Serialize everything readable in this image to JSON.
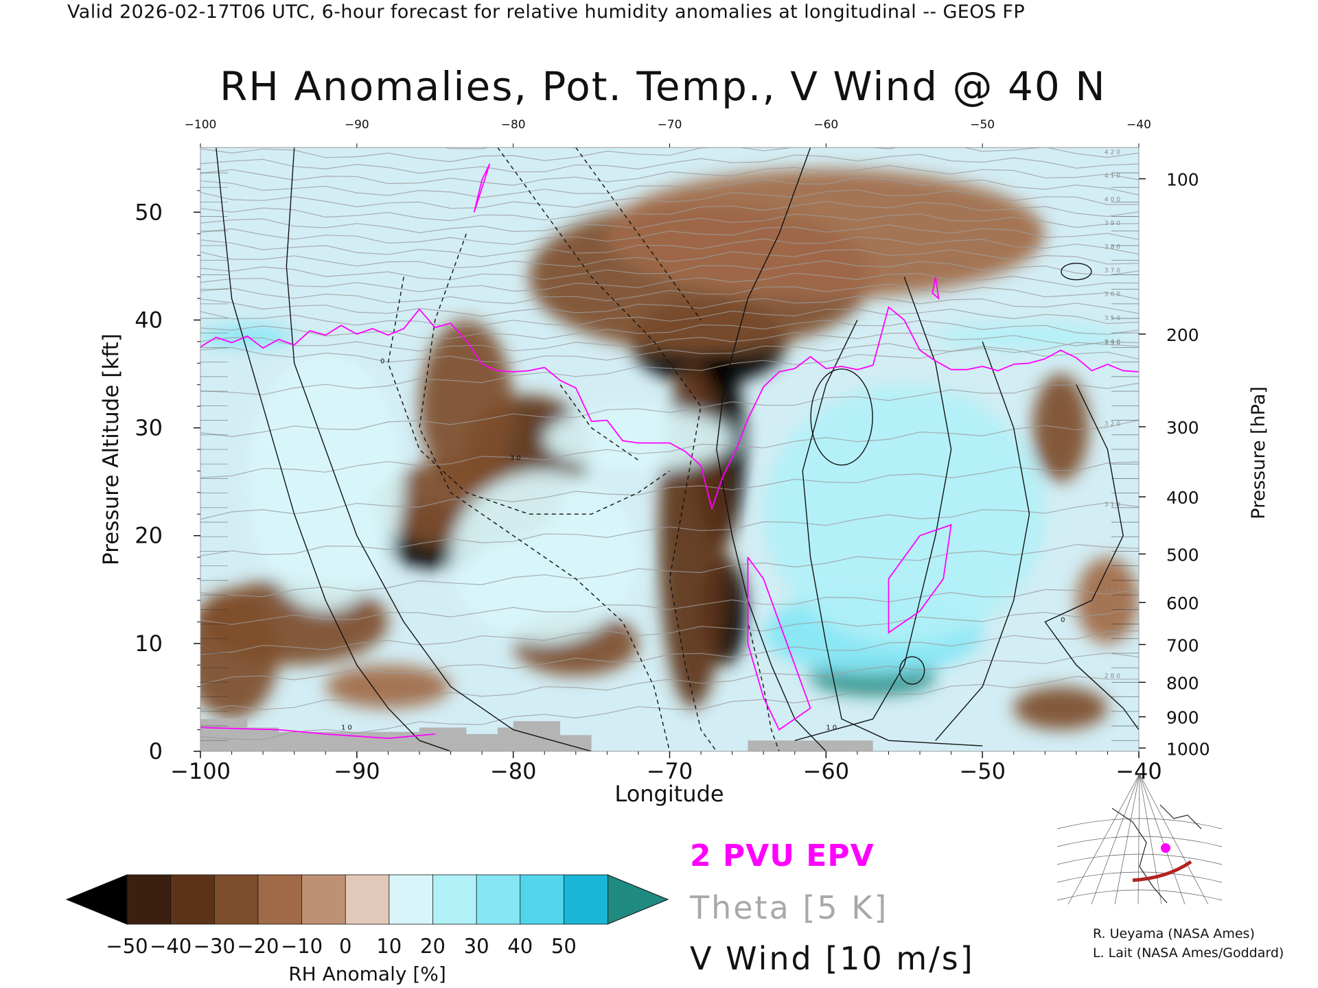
{
  "header": {
    "text": "Valid 2026-02-17T06 UTC, 6-hour forecast for relative humidity anomalies at longitudinal -- GEOS FP"
  },
  "chart_data": {
    "type": "heatmap",
    "title": "RH Anomalies, Pot. Temp., V Wind @ 40 N",
    "xlabel": "Longitude",
    "ylabel_left": "Pressure Altitude [kft]",
    "ylabel_right": "Pressure [hPa]",
    "xlim": [
      -100,
      -40
    ],
    "ylim": [
      0,
      56
    ],
    "x_ticks_bottom": [
      -100,
      -90,
      -80,
      -70,
      -60,
      -50,
      -40
    ],
    "x_ticks_top": [
      -100,
      -90,
      -80,
      -70,
      -60,
      -50,
      -40
    ],
    "y_ticks_left": [
      0,
      10,
      20,
      30,
      40,
      50
    ],
    "pressure_ticks": [
      {
        "hpa": 100,
        "kft": 53.1
      },
      {
        "hpa": 200,
        "kft": 38.7
      },
      {
        "hpa": 300,
        "kft": 30.1
      },
      {
        "hpa": 400,
        "kft": 23.6
      },
      {
        "hpa": 500,
        "kft": 18.3
      },
      {
        "hpa": 600,
        "kft": 13.8
      },
      {
        "hpa": 700,
        "kft": 9.9
      },
      {
        "hpa": 800,
        "kft": 6.4
      },
      {
        "hpa": 900,
        "kft": 3.2
      },
      {
        "hpa": 1000,
        "kft": 0.3
      }
    ],
    "grid": false,
    "colorbar": {
      "label": "RH Anomaly [%]",
      "ticks": [
        -50,
        -40,
        -30,
        -20,
        -10,
        0,
        10,
        20,
        30,
        40,
        50
      ],
      "colors": [
        "#3b2010",
        "#5c3318",
        "#7e4d2c",
        "#a06a48",
        "#be9074",
        "#e2c8b8",
        "#d8f6fa",
        "#b2f0f8",
        "#86e6f4",
        "#52d6ee",
        "#1ab6d8"
      ],
      "under_color": "#000000",
      "over_color": "#1f8a80",
      "extend": "both"
    },
    "theta_levels": [
      280,
      290,
      300,
      310,
      320,
      330,
      340,
      350,
      360,
      370,
      380,
      390,
      400,
      410,
      420
    ],
    "vwind_contour_labels": [
      "0",
      "10",
      "-10",
      "-30"
    ],
    "legend": [
      {
        "label": "2 PVU EPV",
        "color": "#ff00ff"
      },
      {
        "label": "Theta [5 K]",
        "color": "#a8a8a8"
      },
      {
        "label": "V Wind [10 m/s]",
        "color": "#111111"
      }
    ],
    "anomaly_blobs": [
      {
        "lon": -67.5,
        "kft": 38,
        "rl": 5,
        "rk": 4,
        "v": -65
      },
      {
        "lon": -66.8,
        "kft": 28,
        "rl": 1.6,
        "rk": 9,
        "v": -55
      },
      {
        "lon": -66.5,
        "kft": 13,
        "rl": 1.4,
        "rk": 5,
        "v": -55
      },
      {
        "lon": -68.5,
        "kft": 20,
        "rl": 2.2,
        "rk": 16,
        "v": -35
      },
      {
        "lon": -68,
        "kft": 44,
        "rl": 11,
        "rk": 7,
        "v": -28
      },
      {
        "lon": -79,
        "kft": 28,
        "rl": 4,
        "rk": 5,
        "v": -40
      },
      {
        "lon": -85,
        "kft": 20,
        "rl": 3.5,
        "rk": 3,
        "v": -55
      },
      {
        "lon": -83,
        "kft": 23,
        "rl": 6,
        "rk": 4,
        "v": -30
      },
      {
        "lon": -94,
        "kft": 12,
        "rl": 6,
        "rk": 4,
        "v": -30
      },
      {
        "lon": -98,
        "kft": 9,
        "rl": 3,
        "rk": 6,
        "v": -30
      },
      {
        "lon": -83,
        "kft": 32,
        "rl": 3,
        "rk": 8,
        "v": -22
      },
      {
        "lon": -76,
        "kft": 10,
        "rl": 4,
        "rk": 3,
        "v": -25
      },
      {
        "lon": -88,
        "kft": 6,
        "rl": 4,
        "rk": 2,
        "v": -20
      },
      {
        "lon": -45,
        "kft": 30,
        "rl": 1.8,
        "rk": 5,
        "v": -28
      },
      {
        "lon": -45,
        "kft": 4,
        "rl": 3,
        "rk": 2,
        "v": -30
      },
      {
        "lon": -42,
        "kft": 14,
        "rl": 2,
        "rk": 4,
        "v": -15
      },
      {
        "lon": -60,
        "kft": 48,
        "rl": 14,
        "rk": 6,
        "v": -12
      },
      {
        "lon": -57,
        "kft": 7,
        "rl": 4,
        "rk": 1.8,
        "v": 65
      },
      {
        "lon": -57,
        "kft": 11,
        "rl": 7,
        "rk": 4,
        "v": 30
      },
      {
        "lon": -97,
        "kft": 38.5,
        "rl": 3,
        "rk": 1,
        "v": 30
      },
      {
        "lon": -55,
        "kft": 22,
        "rl": 9,
        "rk": 12,
        "v": 20
      },
      {
        "lon": -78,
        "kft": 18,
        "rl": 6,
        "rk": 8,
        "v": 18
      },
      {
        "lon": -47,
        "kft": 38.5,
        "rl": 6,
        "rk": 1.2,
        "v": 25
      },
      {
        "lon": -72,
        "kft": 29,
        "rl": 6,
        "rk": 3,
        "v": 18
      },
      {
        "lon": -92,
        "kft": 25,
        "rl": 5,
        "rk": 12,
        "v": 12
      }
    ],
    "pvu_line": [
      [
        -100,
        37.5
      ],
      [
        -99,
        38.4
      ],
      [
        -98,
        37.9
      ],
      [
        -97,
        38.5
      ],
      [
        -96,
        37.4
      ],
      [
        -95,
        38.2
      ],
      [
        -94,
        37.7
      ],
      [
        -93,
        39.0
      ],
      [
        -92,
        38.6
      ],
      [
        -91,
        39.5
      ],
      [
        -90,
        38.7
      ],
      [
        -89,
        39.2
      ],
      [
        -88,
        38.6
      ],
      [
        -87,
        39.2
      ],
      [
        -86,
        41.0
      ],
      [
        -85,
        39.3
      ],
      [
        -84,
        39.7
      ],
      [
        -83,
        38.1
      ],
      [
        -82,
        35.9
      ],
      [
        -81,
        35.3
      ],
      [
        -80,
        35.2
      ],
      [
        -79,
        35.3
      ],
      [
        -78,
        35.6
      ],
      [
        -77,
        34.4
      ],
      [
        -76,
        33.7
      ],
      [
        -75,
        30.6
      ],
      [
        -74,
        30.7
      ],
      [
        -73,
        28.8
      ],
      [
        -72,
        28.6
      ],
      [
        -71,
        28.6
      ],
      [
        -70,
        28.6
      ],
      [
        -69,
        27.8
      ],
      [
        -68,
        26.5
      ],
      [
        -67.3,
        22.5
      ],
      [
        -66.6,
        25.5
      ],
      [
        -65.8,
        27.8
      ],
      [
        -65,
        30.8
      ],
      [
        -64,
        33.8
      ],
      [
        -63,
        35.2
      ],
      [
        -62,
        35.5
      ],
      [
        -61,
        36.6
      ],
      [
        -60,
        35.5
      ],
      [
        -59,
        35.7
      ],
      [
        -58,
        35.4
      ],
      [
        -57,
        35.8
      ],
      [
        -56.5,
        38.5
      ],
      [
        -56,
        41.2
      ],
      [
        -55,
        40.0
      ],
      [
        -54,
        37.2
      ],
      [
        -53,
        36.2
      ],
      [
        -52,
        35.4
      ],
      [
        -51,
        35.4
      ],
      [
        -50,
        35.7
      ],
      [
        -49,
        35.3
      ],
      [
        -48,
        35.9
      ],
      [
        -47,
        36.0
      ],
      [
        -46,
        36.4
      ],
      [
        -45,
        37.2
      ],
      [
        -44,
        36.5
      ],
      [
        -43,
        35.3
      ],
      [
        -42,
        35.9
      ],
      [
        -41,
        35.3
      ],
      [
        -40,
        35.2
      ]
    ]
  },
  "credits": {
    "line1": "R. Ueyama (NASA Ames)",
    "line2": "L. Lait (NASA Ames/Goddard)"
  }
}
